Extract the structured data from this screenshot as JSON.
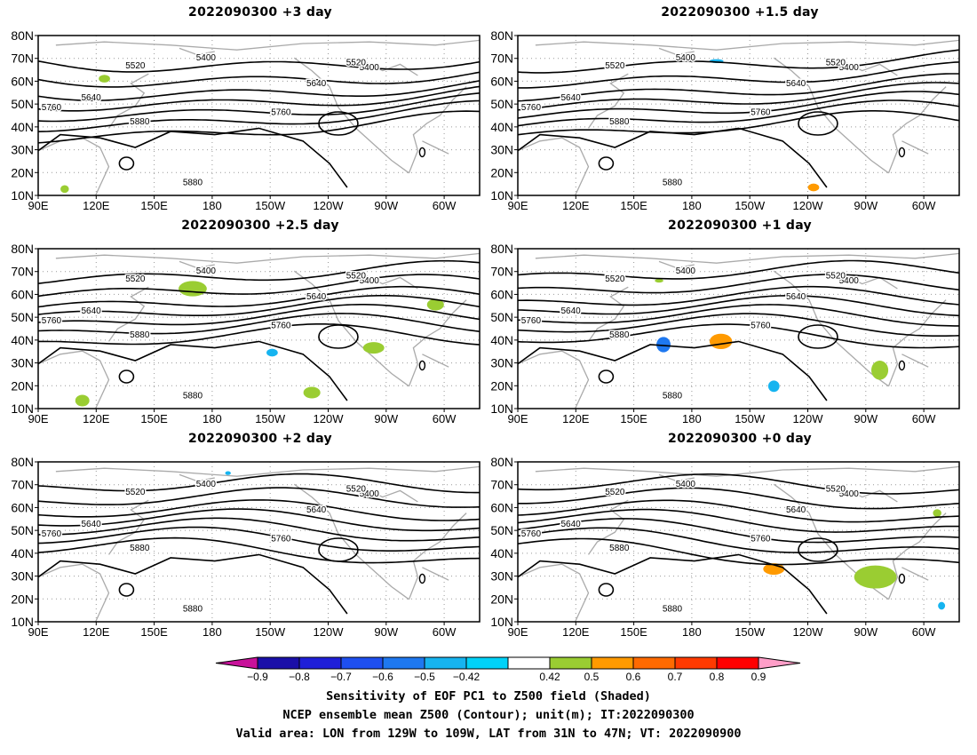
{
  "panels": [
    {
      "title": "2022090300 +3 day"
    },
    {
      "title": "2022090300 +1.5 day"
    },
    {
      "title": "2022090300 +2.5 day"
    },
    {
      "title": "2022090300 +1 day"
    },
    {
      "title": "2022090300 +2 day"
    },
    {
      "title": "2022090300 +0 day"
    }
  ],
  "axes": {
    "lat_ticks": [
      "80N",
      "70N",
      "60N",
      "50N",
      "40N",
      "30N",
      "20N",
      "10N"
    ],
    "lon_ticks": [
      "90E",
      "120E",
      "150E",
      "180",
      "150W",
      "120W",
      "90W",
      "60W"
    ]
  },
  "contour_labels": [
    "5400",
    "5520",
    "5640",
    "5760",
    "5880"
  ],
  "colorbar": {
    "ticks": [
      "−0.9",
      "−0.8",
      "−0.7",
      "−0.6",
      "−0.5",
      "−0.42",
      "0.42",
      "0.5",
      "0.6",
      "0.7",
      "0.8",
      "0.9"
    ],
    "colors": [
      "#c8119a",
      "#1a0fa8",
      "#1f1fd8",
      "#1e4ff0",
      "#1e78f0",
      "#16b4f0",
      "#00d2f8",
      "#ffffff",
      "#9acd32",
      "#ff9a00",
      "#ff6a00",
      "#ff3a00",
      "#ff0000",
      "#ff9ec8"
    ]
  },
  "caption": {
    "line1": "Sensitivity of EOF PC1 to Z500 field (Shaded)",
    "line2": "NCEP ensemble mean Z500 (Contour); unit(m); IT:2022090300",
    "line3": "Valid area: LON from 129W to 109W, LAT from 31N to 47N; VT: 2022090900"
  }
}
